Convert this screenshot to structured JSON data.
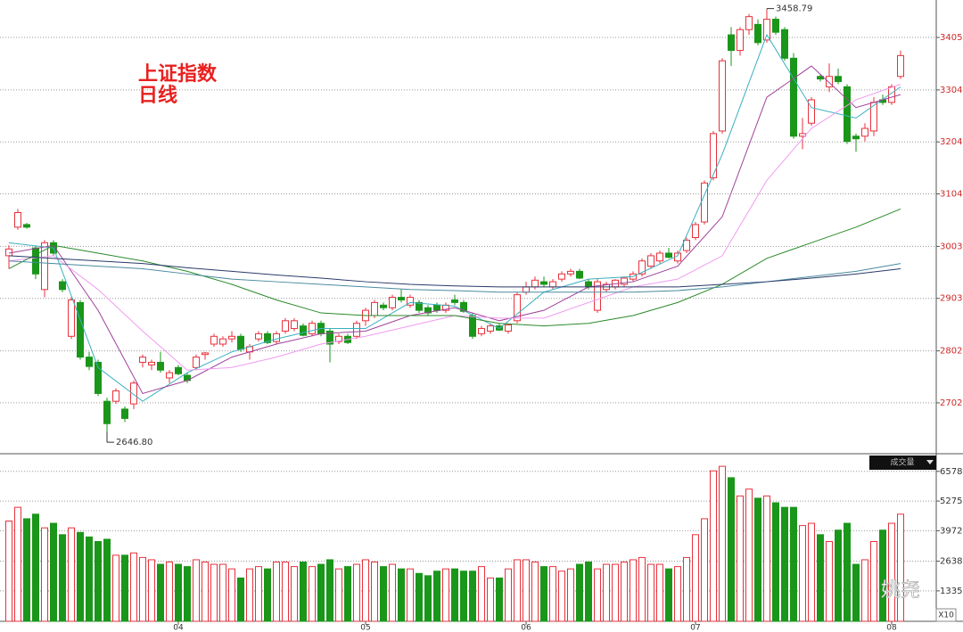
{
  "chart_data": {
    "type": "candlestick",
    "title": "上证指数",
    "subtitle": "日线",
    "up_color": "#e8323c",
    "down_color": "#1a961a",
    "xlim": [
      -1,
      104
    ],
    "xticks": [
      {
        "value": 19,
        "label": "04"
      },
      {
        "value": 40,
        "label": "05"
      },
      {
        "value": 58,
        "label": "06"
      },
      {
        "value": 77,
        "label": "07"
      },
      {
        "value": 99,
        "label": "08"
      }
    ],
    "ylim": [
      2611,
      3477
    ],
    "yticks": [
      2702,
      2802,
      2903,
      3003,
      3104,
      3204,
      3304,
      3405
    ],
    "grid": true,
    "ohlc": [
      [
        2985,
        3005,
        2960,
        2998
      ],
      [
        3040,
        3075,
        3035,
        3068
      ],
      [
        3045,
        3048,
        3037,
        3040
      ],
      [
        3000,
        3005,
        2940,
        2950
      ],
      [
        2920,
        3015,
        2905,
        3010
      ],
      [
        3010,
        3015,
        2985,
        2990
      ],
      [
        2935,
        2940,
        2915,
        2920
      ],
      [
        2830,
        2905,
        2825,
        2900
      ],
      [
        2895,
        2900,
        2785,
        2790
      ],
      [
        2790,
        2800,
        2765,
        2772
      ],
      [
        2780,
        2785,
        2715,
        2720
      ],
      [
        2705,
        2712,
        2646.8,
        2662
      ],
      [
        2705,
        2730,
        2700,
        2725
      ],
      [
        2690,
        2695,
        2665,
        2672
      ],
      [
        2700,
        2745,
        2690,
        2740
      ],
      [
        2780,
        2795,
        2770,
        2790
      ],
      [
        2775,
        2785,
        2765,
        2780
      ],
      [
        2780,
        2800,
        2760,
        2765
      ],
      [
        2750,
        2765,
        2740,
        2760
      ],
      [
        2770,
        2775,
        2755,
        2758
      ],
      [
        2755,
        2760,
        2740,
        2745
      ],
      [
        2770,
        2795,
        2765,
        2790
      ],
      [
        2795,
        2800,
        2785,
        2798
      ],
      [
        2815,
        2835,
        2810,
        2830
      ],
      [
        2815,
        2830,
        2810,
        2825
      ],
      [
        2825,
        2840,
        2818,
        2830
      ],
      [
        2830,
        2835,
        2800,
        2805
      ],
      [
        2800,
        2815,
        2785,
        2810
      ],
      [
        2825,
        2840,
        2820,
        2835
      ],
      [
        2835,
        2840,
        2815,
        2818
      ],
      [
        2820,
        2840,
        2815,
        2835
      ],
      [
        2840,
        2865,
        2835,
        2860
      ],
      [
        2845,
        2865,
        2840,
        2860
      ],
      [
        2850,
        2855,
        2830,
        2832
      ],
      [
        2835,
        2860,
        2830,
        2855
      ],
      [
        2855,
        2860,
        2830,
        2835
      ],
      [
        2840,
        2845,
        2780,
        2815
      ],
      [
        2820,
        2835,
        2815,
        2830
      ],
      [
        2830,
        2835,
        2815,
        2818
      ],
      [
        2830,
        2860,
        2825,
        2855
      ],
      [
        2860,
        2885,
        2850,
        2880
      ],
      [
        2870,
        2900,
        2865,
        2895
      ],
      [
        2890,
        2895,
        2880,
        2885
      ],
      [
        2885,
        2910,
        2880,
        2905
      ],
      [
        2905,
        2920,
        2895,
        2900
      ],
      [
        2890,
        2910,
        2885,
        2905
      ],
      [
        2895,
        2900,
        2875,
        2880
      ],
      [
        2885,
        2890,
        2870,
        2875
      ],
      [
        2890,
        2895,
        2875,
        2880
      ],
      [
        2880,
        2895,
        2875,
        2890
      ],
      [
        2900,
        2910,
        2890,
        2895
      ],
      [
        2895,
        2900,
        2875,
        2878
      ],
      [
        2870,
        2875,
        2825,
        2830
      ],
      [
        2835,
        2850,
        2830,
        2845
      ],
      [
        2840,
        2855,
        2835,
        2850
      ],
      [
        2850,
        2855,
        2840,
        2842
      ],
      [
        2840,
        2855,
        2835,
        2852
      ],
      [
        2860,
        2915,
        2855,
        2910
      ],
      [
        2915,
        2935,
        2910,
        2925
      ],
      [
        2925,
        2945,
        2920,
        2938
      ],
      [
        2935,
        2945,
        2925,
        2930
      ],
      [
        2925,
        2940,
        2920,
        2935
      ],
      [
        2940,
        2955,
        2935,
        2950
      ],
      [
        2950,
        2960,
        2945,
        2955
      ],
      [
        2955,
        2960,
        2940,
        2942
      ],
      [
        2935,
        2940,
        2920,
        2925
      ],
      [
        2880,
        2940,
        2875,
        2935
      ],
      [
        2920,
        2935,
        2915,
        2930
      ],
      [
        2925,
        2940,
        2920,
        2938
      ],
      [
        2930,
        2945,
        2925,
        2942
      ],
      [
        2940,
        2955,
        2935,
        2950
      ],
      [
        2950,
        2980,
        2945,
        2975
      ],
      [
        2965,
        2990,
        2960,
        2985
      ],
      [
        2975,
        2995,
        2970,
        2990
      ],
      [
        2990,
        3000,
        2980,
        2982
      ],
      [
        2975,
        2995,
        2970,
        2990
      ],
      [
        2995,
        3020,
        2990,
        3015
      ],
      [
        3020,
        3050,
        3015,
        3045
      ],
      [
        3050,
        3130,
        3045,
        3125
      ],
      [
        3135,
        3225,
        3130,
        3220
      ],
      [
        3225,
        3365,
        3220,
        3360
      ],
      [
        3410,
        3425,
        3350,
        3380
      ],
      [
        3380,
        3425,
        3370,
        3420
      ],
      [
        3420,
        3450,
        3410,
        3445
      ],
      [
        3430,
        3440,
        3390,
        3395
      ],
      [
        3400,
        3458.79,
        3395,
        3440
      ],
      [
        3440,
        3445,
        3410,
        3415
      ],
      [
        3420,
        3425,
        3360,
        3365
      ],
      [
        3365,
        3375,
        3210,
        3215
      ],
      [
        3215,
        3250,
        3190,
        3220
      ],
      [
        3240,
        3290,
        3235,
        3285
      ],
      [
        3330,
        3335,
        3320,
        3325
      ],
      [
        3310,
        3355,
        3300,
        3330
      ],
      [
        3330,
        3345,
        3315,
        3320
      ],
      [
        3310,
        3315,
        3200,
        3205
      ],
      [
        3215,
        3220,
        3185,
        3210
      ],
      [
        3215,
        3240,
        3205,
        3230
      ],
      [
        3225,
        3290,
        3215,
        3280
      ],
      [
        3285,
        3295,
        3275,
        3280
      ],
      [
        3280,
        3315,
        3275,
        3310
      ],
      [
        3330,
        3380,
        3325,
        3370
      ]
    ],
    "annotations": [
      {
        "label": "2646.80",
        "value": 2646.8
      },
      {
        "label": "3458.79",
        "value": 3458.79
      }
    ],
    "ma_x": [
      0,
      5,
      10,
      15,
      20,
      25,
      30,
      35,
      40,
      45,
      50,
      55,
      60,
      65,
      70,
      75,
      80,
      85,
      90,
      95,
      100
    ],
    "ma": [
      {
        "color": "#3ab0c0",
        "values": [
          3010,
          3000,
          2770,
          2705,
          2760,
          2800,
          2825,
          2845,
          2845,
          2895,
          2888,
          2845,
          2915,
          2940,
          2945,
          2985,
          3180,
          3410,
          3270,
          3250,
          3310
        ]
      },
      {
        "color": "#a0409a",
        "values": [
          2990,
          3005,
          2880,
          2720,
          2745,
          2790,
          2815,
          2835,
          2840,
          2870,
          2885,
          2860,
          2880,
          2925,
          2935,
          2965,
          3060,
          3290,
          3350,
          3270,
          3295
        ]
      },
      {
        "color": "#f09cf0",
        "values": [
          2975,
          2985,
          2920,
          2840,
          2765,
          2770,
          2790,
          2815,
          2830,
          2850,
          2870,
          2865,
          2865,
          2895,
          2925,
          2940,
          2985,
          3130,
          3230,
          3285,
          3315
        ]
      },
      {
        "color": "#2a8a2a",
        "values": [
          2960,
          3005,
          2990,
          2975,
          2955,
          2930,
          2900,
          2875,
          2870,
          2870,
          2870,
          2855,
          2850,
          2855,
          2870,
          2895,
          2930,
          2980,
          3010,
          3040,
          3075
        ]
      },
      {
        "color": "#4a8aa0",
        "values": [
          2975,
          2970,
          2965,
          2960,
          2950,
          2940,
          2935,
          2930,
          2925,
          2920,
          2918,
          2915,
          2915,
          2915,
          2915,
          2918,
          2925,
          2935,
          2945,
          2955,
          2970
        ]
      },
      {
        "color": "#2a3a6a",
        "values": [
          2985,
          2980,
          2975,
          2970,
          2962,
          2955,
          2948,
          2942,
          2935,
          2930,
          2927,
          2925,
          2925,
          2925,
          2925,
          2925,
          2930,
          2935,
          2942,
          2950,
          2960
        ]
      }
    ],
    "volume": {
      "label": "成交量",
      "multiplier": "X10",
      "ylim": [
        0,
        7000
      ],
      "yticks": [
        1335,
        2638,
        3972,
        5275,
        6578
      ],
      "values": [
        4400,
        5000,
        4500,
        4700,
        4100,
        4300,
        3800,
        4100,
        3900,
        3700,
        3500,
        3600,
        2900,
        2900,
        3000,
        2800,
        2700,
        2500,
        2600,
        2500,
        2400,
        2700,
        2600,
        2500,
        2500,
        2300,
        1900,
        2300,
        2400,
        2300,
        2600,
        2600,
        2400,
        2600,
        2400,
        2500,
        2700,
        2300,
        2400,
        2500,
        2700,
        2600,
        2400,
        2500,
        2300,
        2300,
        2100,
        2000,
        2200,
        2300,
        2300,
        2200,
        2200,
        2400,
        1900,
        1900,
        2300,
        2700,
        2700,
        2600,
        2400,
        2400,
        2200,
        2300,
        2500,
        2600,
        2300,
        2500,
        2500,
        2600,
        2700,
        2800,
        2500,
        2500,
        2300,
        2400,
        2800,
        3800,
        4500,
        6600,
        6800,
        6300,
        5500,
        5800,
        5400,
        5500,
        5200,
        5000,
        5000,
        4200,
        4300,
        3800,
        3500,
        4000,
        4300,
        2500,
        2700,
        3500,
        4000,
        4300,
        4700
      ]
    },
    "watermark": "姚尧"
  }
}
